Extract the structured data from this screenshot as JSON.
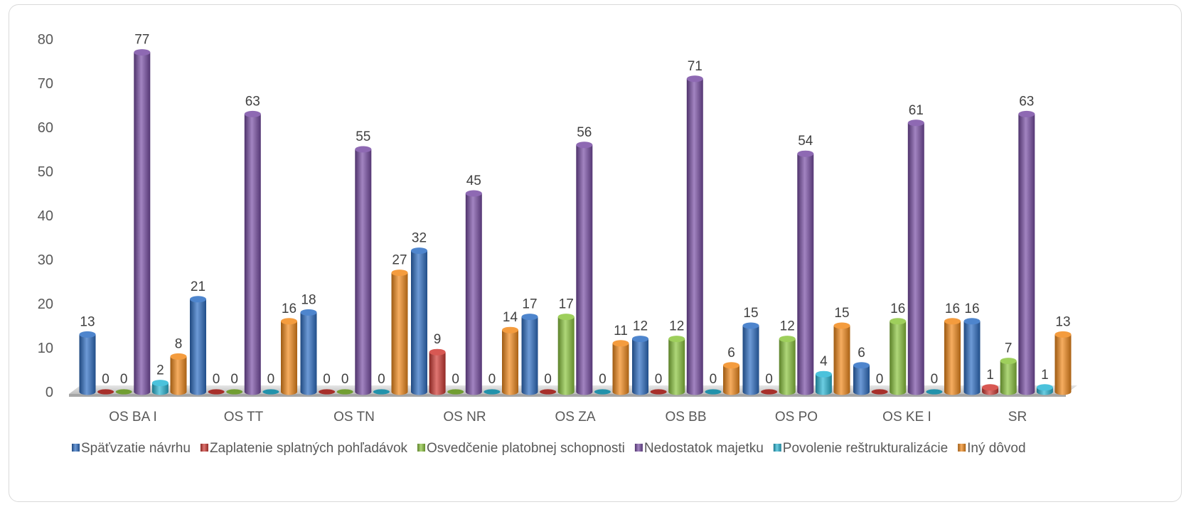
{
  "chart_data": {
    "type": "bar",
    "style": "3d-cylinder",
    "categories": [
      "OS BA I",
      "OS TT",
      "OS TN",
      "OS NR",
      "OS ZA",
      "OS BB",
      "OS PO",
      "OS KE I",
      "SR"
    ],
    "series": [
      {
        "name": "Späťvzatie návrhu",
        "color": "#2f6fc4",
        "values": [
          13,
          21,
          18,
          32,
          17,
          12,
          15,
          6,
          16
        ]
      },
      {
        "name": "Zaplatenie splatných pohľadávok",
        "color": "#d13b35",
        "values": [
          0,
          0,
          0,
          9,
          0,
          0,
          0,
          0,
          1
        ]
      },
      {
        "name": "Osvedčenie platobnej schopnosti",
        "color": "#8dc63f",
        "values": [
          0,
          0,
          0,
          0,
          17,
          12,
          12,
          16,
          7
        ]
      },
      {
        "name": "Nedostatok majetku",
        "color": "#7a4fa6",
        "values": [
          77,
          63,
          55,
          45,
          56,
          71,
          54,
          61,
          63
        ]
      },
      {
        "name": "Povolenie reštrukturalizácie",
        "color": "#2bb7d6",
        "values": [
          2,
          0,
          0,
          0,
          0,
          0,
          4,
          0,
          1
        ]
      },
      {
        "name": "Iný dôvod",
        "color": "#f28a1c",
        "values": [
          8,
          16,
          27,
          14,
          11,
          6,
          15,
          16,
          13
        ]
      }
    ],
    "yticks": [
      "0",
      "10",
      "20",
      "30",
      "40",
      "50",
      "60",
      "70",
      "80"
    ],
    "ylim": [
      0,
      80
    ],
    "grid": false,
    "legend_position": "bottom"
  }
}
